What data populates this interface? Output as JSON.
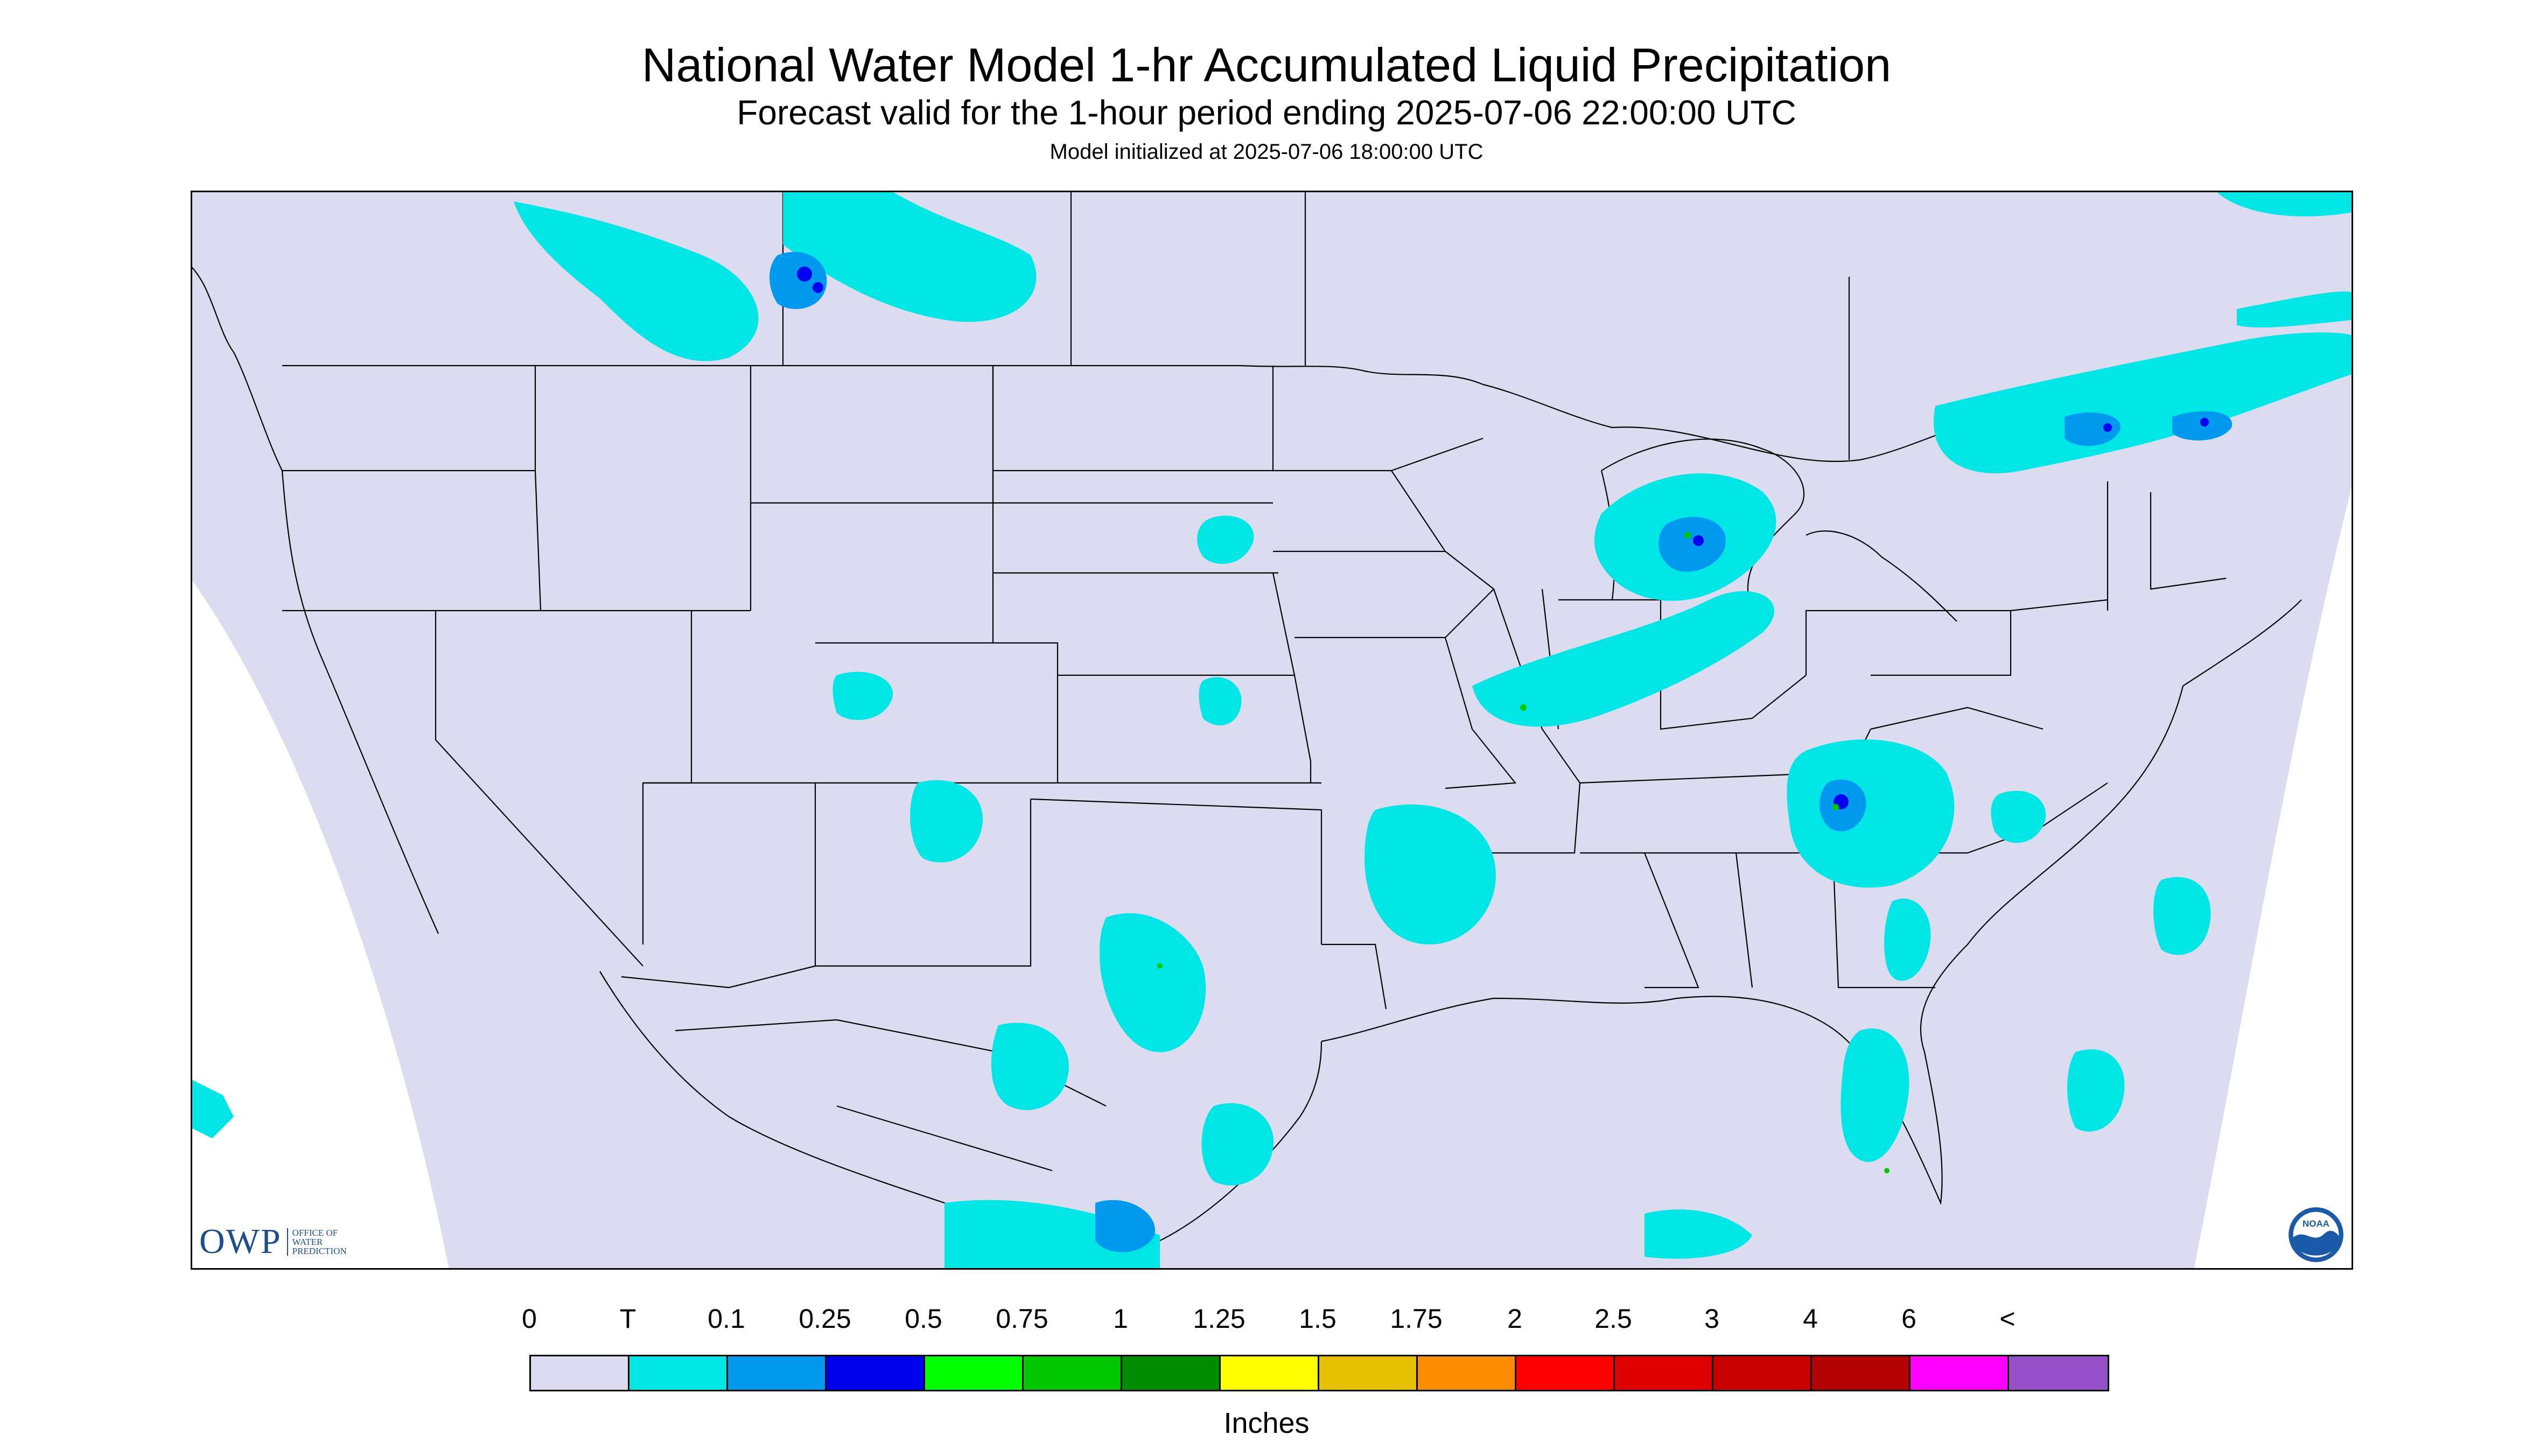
{
  "header": {
    "title": "National Water Model 1-hr Accumulated Liquid Precipitation",
    "subtitle": "Forecast valid for the 1-hour period ending 2025-07-06 22:00:00 UTC",
    "init": "Model initialized at 2025-07-06 18:00:00 UTC"
  },
  "map": {
    "background": "#dcdcf0",
    "outside": "#ffffff",
    "border_color": "#000000",
    "precip_light": "#00e6e6",
    "precip_mid": "#0099f0",
    "precip_heavy": "#0000f0",
    "precip_green": "#00c800"
  },
  "legend": {
    "labels": [
      "0",
      "T",
      "0.1",
      "0.25",
      "0.5",
      "0.75",
      "1",
      "1.25",
      "1.5",
      "1.75",
      "2",
      "2.5",
      "3",
      "4",
      "6",
      "<"
    ],
    "colors": [
      "#dcdcf0",
      "#00e6e6",
      "#0099f0",
      "#0000f0",
      "#00ff00",
      "#00c800",
      "#008c00",
      "#ffff00",
      "#e6c000",
      "#ff8c00",
      "#ff0000",
      "#e00000",
      "#c80000",
      "#b40000",
      "#ff00ff",
      "#9650c8"
    ],
    "units": "Inches"
  },
  "logos": {
    "owp_mark": "OWP",
    "owp_text": [
      "OFFICE OF",
      "WATER",
      "PREDICTION"
    ],
    "noaa_icon": "noaa-logo-icon",
    "noaa_text": "NOAA"
  }
}
